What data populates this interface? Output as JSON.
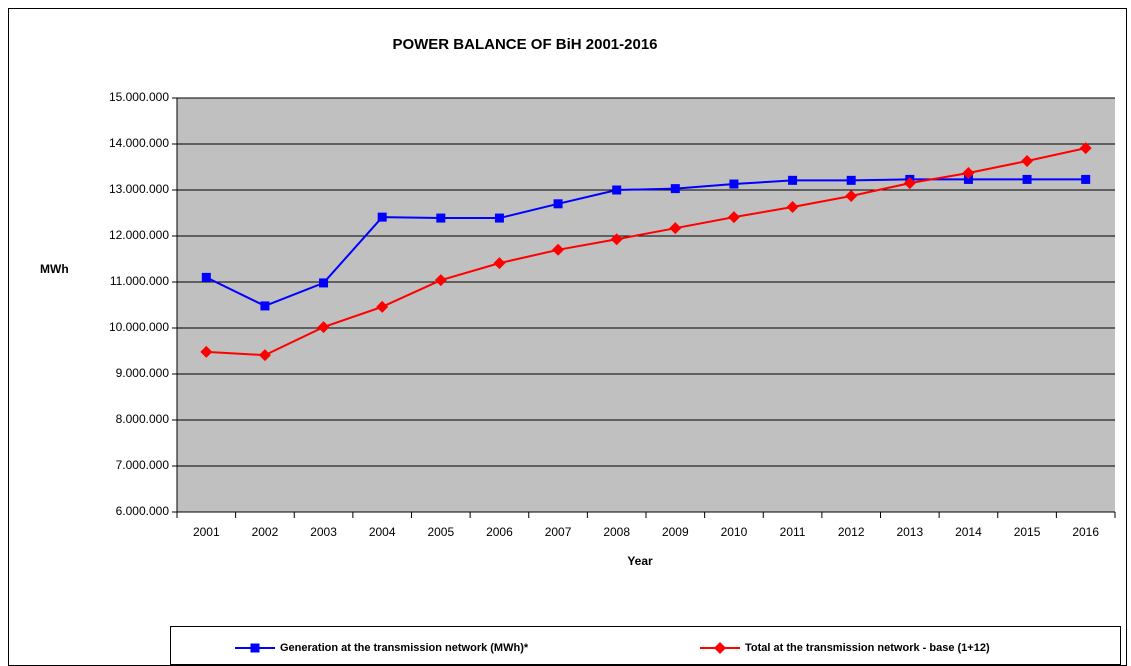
{
  "chart_data": {
    "type": "line",
    "title": "POWER BALANCE OF BiH 2001-2016",
    "x_label": "Year",
    "y_label": "MWh",
    "categories": [
      "2001",
      "2002",
      "2003",
      "2004",
      "2005",
      "2006",
      "2007",
      "2008",
      "2009",
      "2010",
      "2011",
      "2012",
      "2013",
      "2014",
      "2015",
      "2016"
    ],
    "series": [
      {
        "name": "Generation at the transmission network (MWh)*",
        "color": "#0000ff",
        "marker": "square",
        "values": [
          11100000,
          10480000,
          10980000,
          12410000,
          12390000,
          12390000,
          12700000,
          13000000,
          13030000,
          13130000,
          13210000,
          13210000,
          13230000,
          13230000,
          13230000,
          13230000
        ]
      },
      {
        "name": "Total at the transmission network -  base (1+12)",
        "color": "#ff0000",
        "marker": "diamond",
        "values": [
          9480000,
          9410000,
          10020000,
          10460000,
          11040000,
          11410000,
          11700000,
          11930000,
          12170000,
          12410000,
          12630000,
          12870000,
          13150000,
          13370000,
          13630000,
          13910000
        ]
      }
    ],
    "ylim": [
      6000000,
      15000000
    ],
    "yticks": [
      {
        "value": 6000000,
        "label": "6.000.000"
      },
      {
        "value": 7000000,
        "label": "7.000.000"
      },
      {
        "value": 8000000,
        "label": "8.000.000"
      },
      {
        "value": 9000000,
        "label": "9.000.000"
      },
      {
        "value": 10000000,
        "label": "10.000.000"
      },
      {
        "value": 11000000,
        "label": "11.000.000"
      },
      {
        "value": 12000000,
        "label": "12.000.000"
      },
      {
        "value": 13000000,
        "label": "13.000.000"
      },
      {
        "value": 14000000,
        "label": "14.000.000"
      },
      {
        "value": 15000000,
        "label": "15.000.000"
      }
    ],
    "grid": true,
    "plot_background": "#c0c0c0",
    "legend": "bottom"
  }
}
